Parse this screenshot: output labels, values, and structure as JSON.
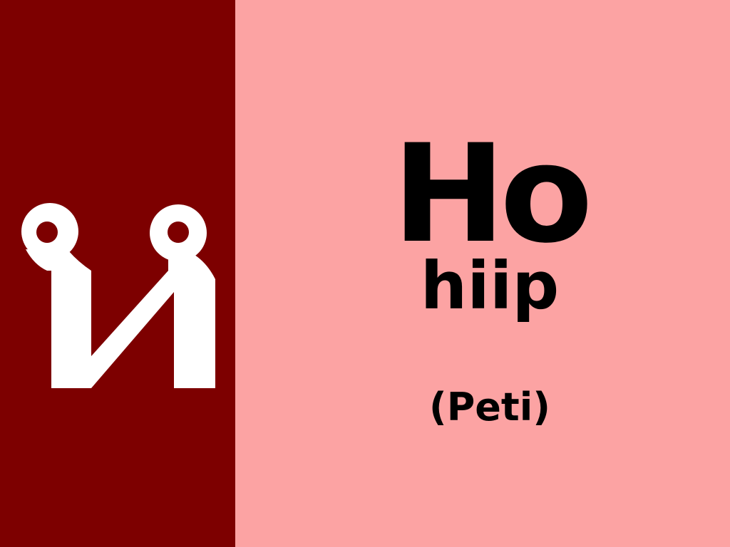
{
  "colors": {
    "left_background": "#7d0000",
    "right_background": "#fca3a3",
    "glyph": "#ffffff",
    "text": "#000000"
  },
  "glyph": {
    "icon": "script-character-glyph-icon"
  },
  "word": {
    "main": "Ho",
    "romanization": "hiip",
    "translation": "(Peti)"
  }
}
